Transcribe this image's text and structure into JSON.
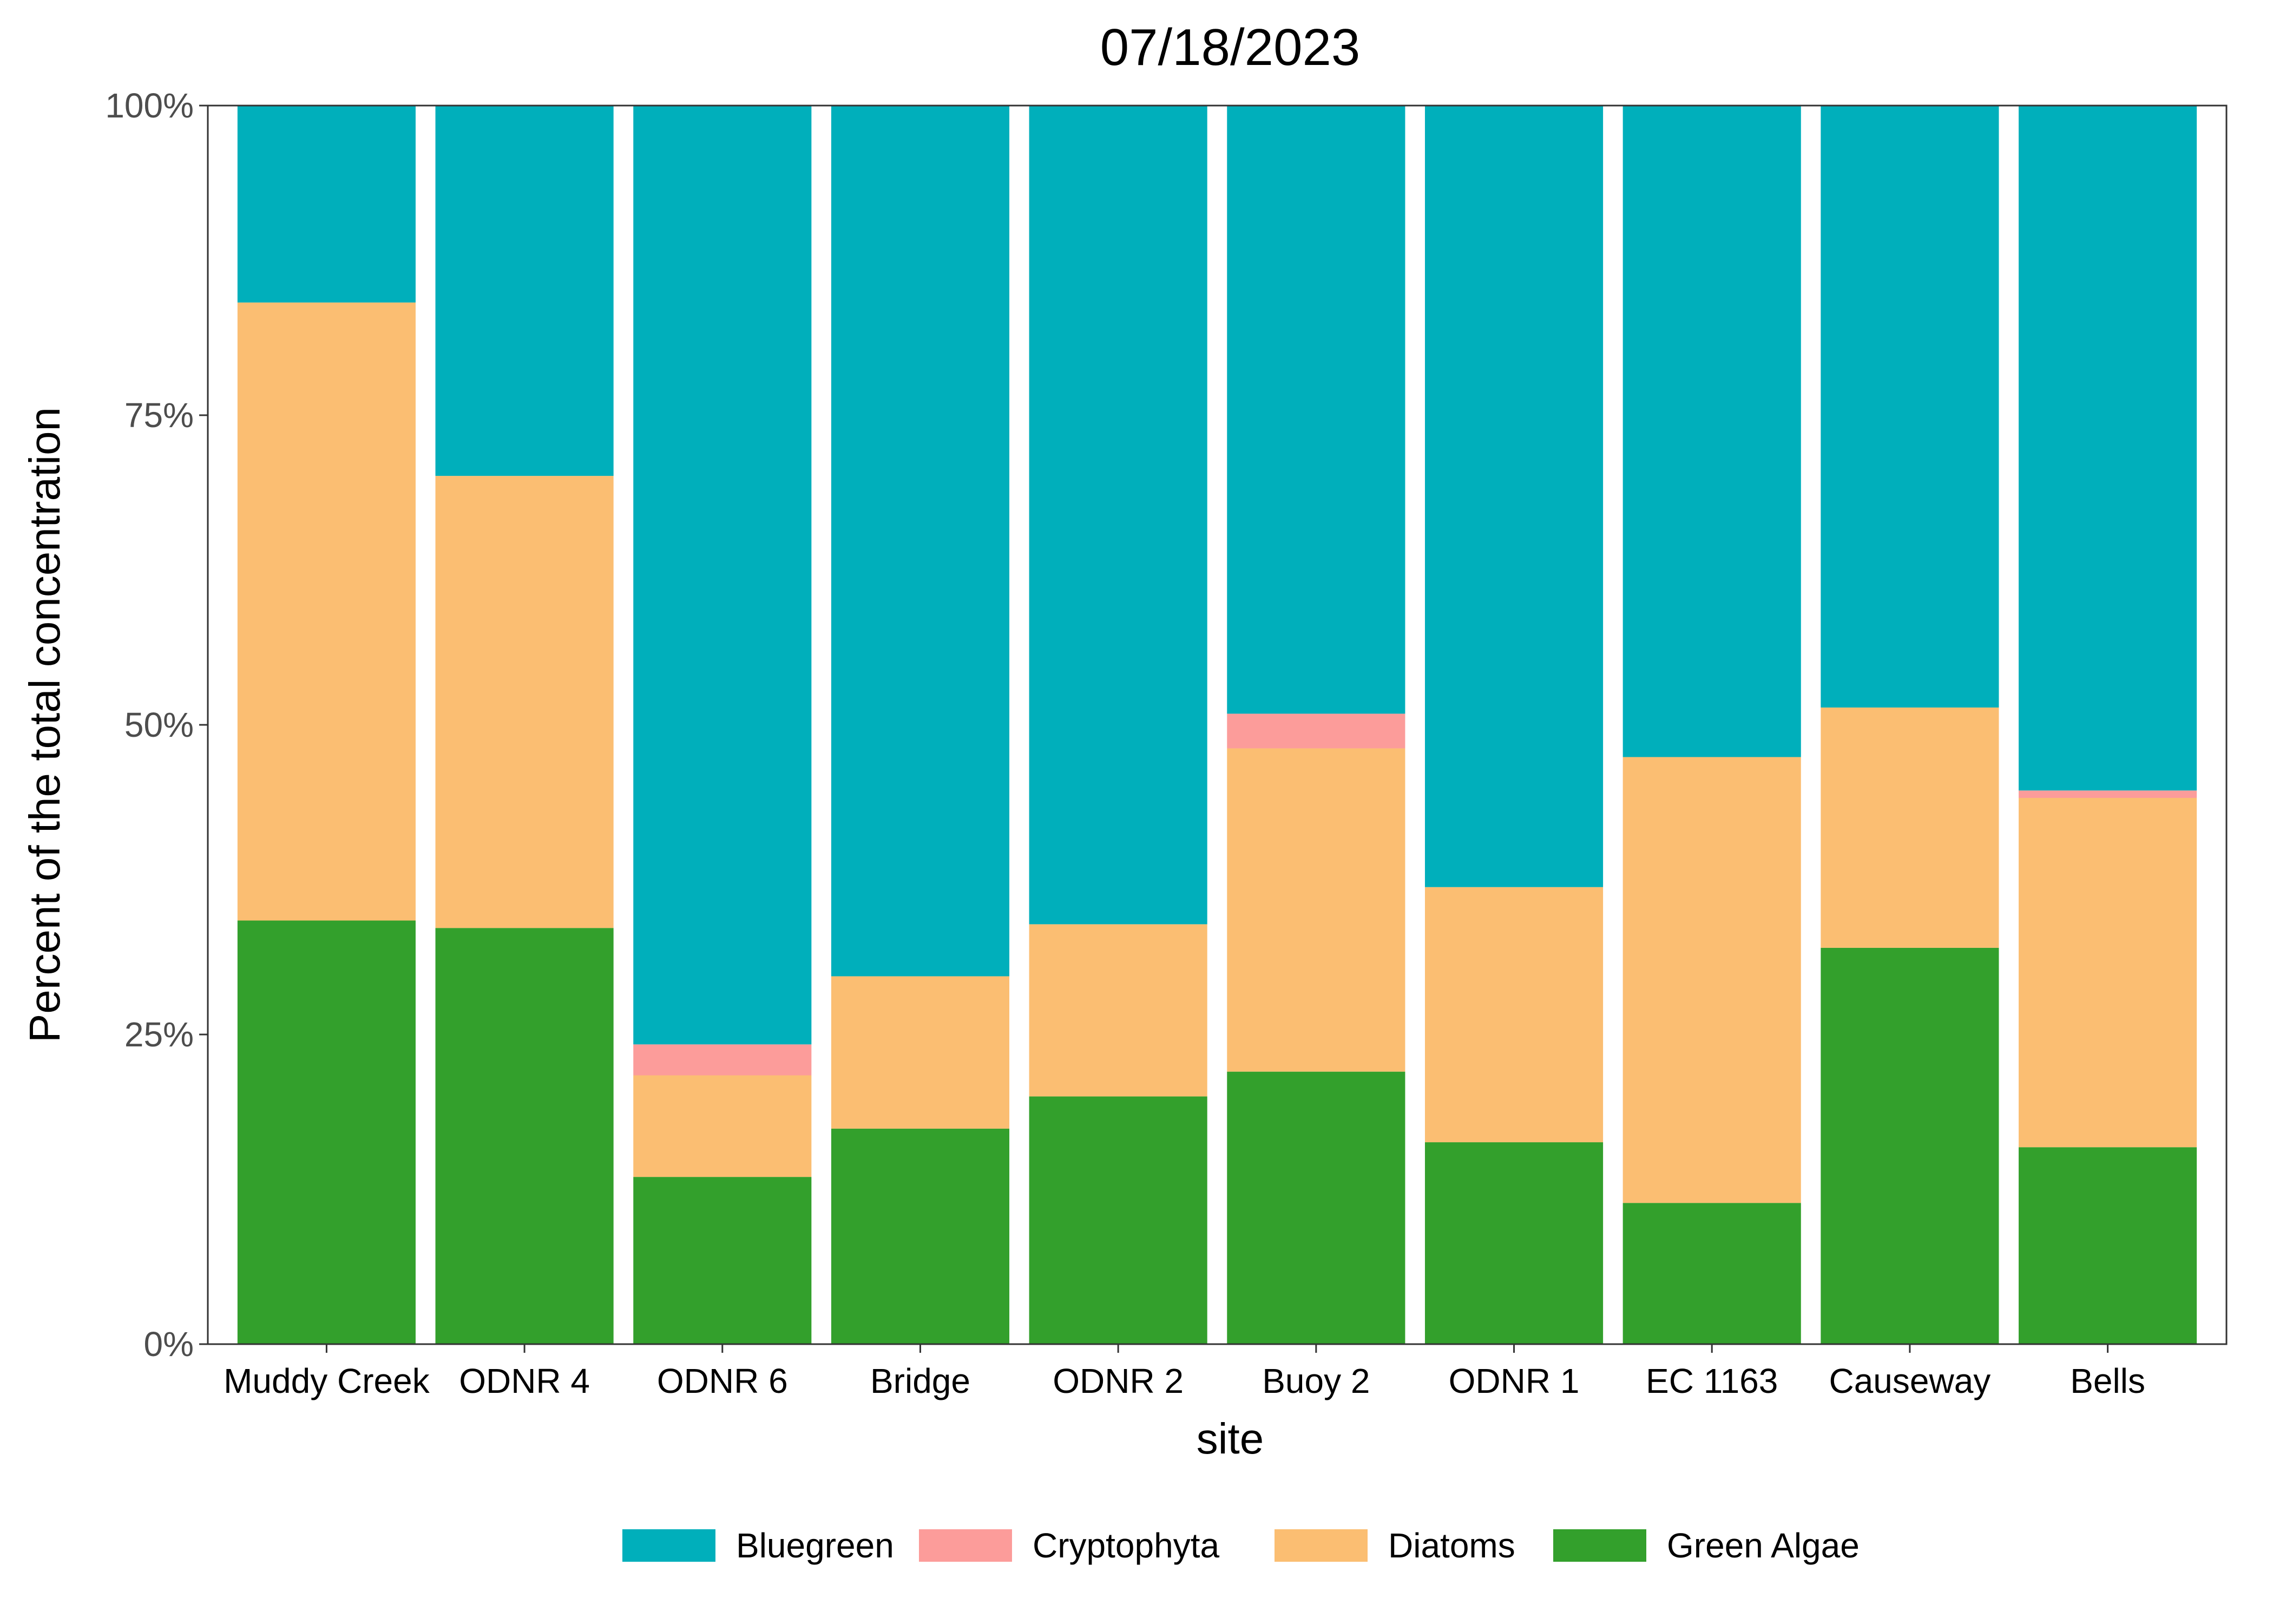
{
  "chart_data": {
    "type": "bar",
    "stacked": true,
    "normalized_percent": true,
    "title": "07/18/2023",
    "xlabel": "site",
    "ylabel": "Percent of the total concentration",
    "ylim": [
      0,
      100
    ],
    "yticks": [
      "0%",
      "25%",
      "50%",
      "75%",
      "100%"
    ],
    "grid": false,
    "legend_position": "bottom",
    "categories": [
      "Muddy Creek",
      "ODNR 4",
      "ODNR 6",
      "Bridge",
      "ODNR 2",
      "Buoy 2",
      "ODNR 1",
      "EC 1163",
      "Causeway",
      "Bells"
    ],
    "series": [
      {
        "name": "Bluegreen",
        "color": "#00AFBB",
        "values": [
          15.9,
          29.9,
          75.8,
          70.3,
          66.1,
          49.1,
          63.1,
          52.6,
          48.6,
          55.3
        ]
      },
      {
        "name": "Cryptophyta",
        "color": "#FC9C9A",
        "values": [
          0,
          0,
          2.5,
          0,
          0,
          2.8,
          0,
          0,
          0,
          0.6
        ]
      },
      {
        "name": "Diatoms",
        "color": "#FBBE72",
        "values": [
          49.9,
          36.5,
          8.2,
          12.3,
          13.9,
          26.1,
          20.6,
          36.0,
          19.4,
          28.2
        ]
      },
      {
        "name": "Green Algae",
        "color": "#33A02C",
        "values": [
          34.2,
          33.6,
          13.5,
          17.4,
          20.0,
          22.0,
          16.3,
          11.4,
          32.0,
          15.9
        ]
      }
    ]
  }
}
